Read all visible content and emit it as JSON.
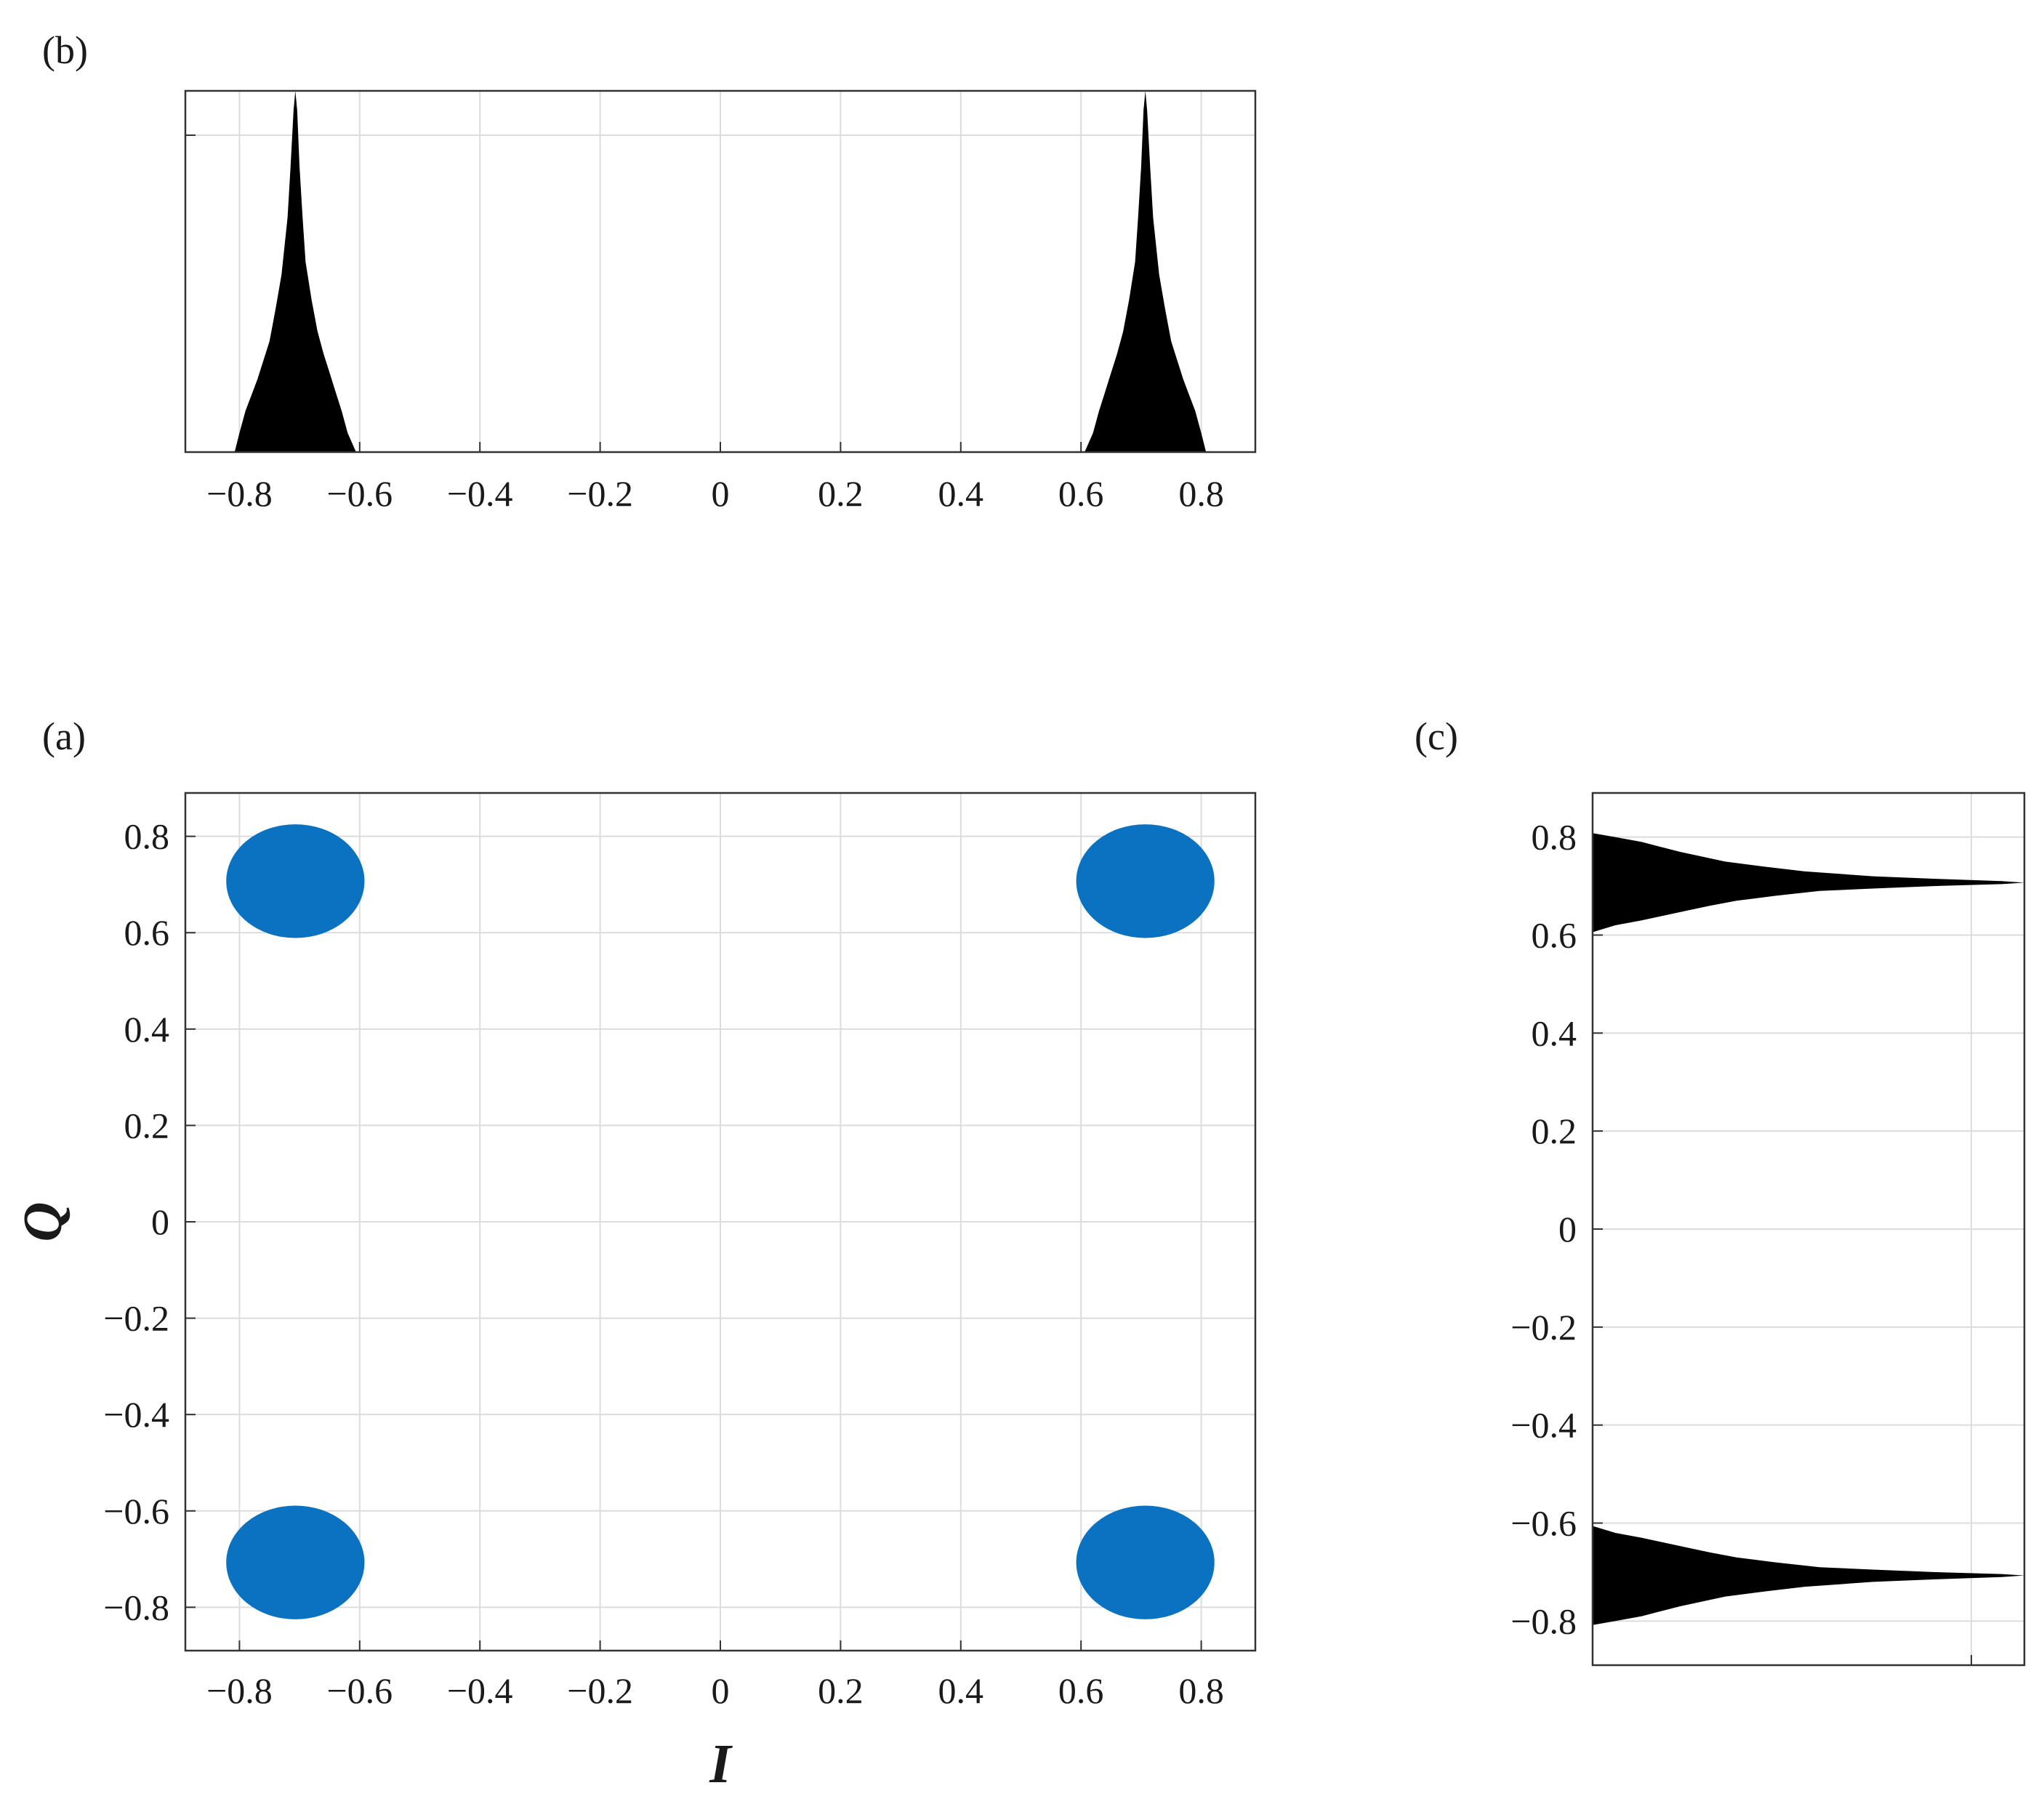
{
  "figure": {
    "panel_labels": {
      "a": "(a)",
      "b": "(b)",
      "c": "(c)"
    }
  },
  "colors": {
    "scatter": "#0a72c0",
    "histogram": "#000000",
    "grid": "#dcdcdc",
    "axis": "#333333"
  },
  "chart_data": [
    {
      "panel": "(a)",
      "type": "scatter",
      "xlabel": "I",
      "ylabel": "Q",
      "xlim": [
        -0.89,
        0.89
      ],
      "ylim": [
        -0.89,
        0.89
      ],
      "xticks": [
        -0.8,
        -0.6,
        -0.4,
        -0.2,
        0,
        0.2,
        0.4,
        0.6,
        0.8
      ],
      "yticks": [
        -0.8,
        -0.6,
        -0.4,
        -0.2,
        0,
        0.2,
        0.4,
        0.6,
        0.8
      ],
      "xtick_labels": [
        "−0.8",
        "−0.6",
        "−0.4",
        "−0.2",
        "0",
        "0.2",
        "0.4",
        "0.6",
        "0.8"
      ],
      "ytick_labels": [
        "−0.8",
        "−0.6",
        "−0.4",
        "−0.2",
        "0",
        "0.2",
        "0.4",
        "0.6",
        "0.8"
      ],
      "grid": true,
      "clusters": [
        {
          "center": [
            -0.707,
            0.707
          ],
          "spread": [
            0.115,
            0.118
          ]
        },
        {
          "center": [
            0.707,
            0.707
          ],
          "spread": [
            0.115,
            0.118
          ]
        },
        {
          "center": [
            -0.707,
            -0.707
          ],
          "spread": [
            0.115,
            0.118
          ]
        },
        {
          "center": [
            0.707,
            -0.707
          ],
          "spread": [
            0.115,
            0.118
          ]
        }
      ]
    },
    {
      "panel": "(b)",
      "type": "area",
      "description_axis": "I",
      "xlim": [
        -0.89,
        0.89
      ],
      "ylim": [
        0,
        1.14
      ],
      "xticks": [
        -0.8,
        -0.6,
        -0.4,
        -0.2,
        0,
        0.2,
        0.4,
        0.6,
        0.8
      ],
      "xtick_labels": [
        "−0.8",
        "−0.6",
        "−0.4",
        "−0.2",
        "0",
        "0.2",
        "0.4",
        "0.6",
        "0.8"
      ],
      "ytick_marks": [
        1.0
      ],
      "grid": true,
      "peaks": [
        {
          "center": -0.707,
          "profile": [
            [
              -0.808,
              0.0
            ],
            [
              -0.8,
              0.06
            ],
            [
              -0.79,
              0.13
            ],
            [
              -0.78,
              0.18
            ],
            [
              -0.77,
              0.23
            ],
            [
              -0.76,
              0.29
            ],
            [
              -0.75,
              0.35
            ],
            [
              -0.74,
              0.45
            ],
            [
              -0.73,
              0.56
            ],
            [
              -0.72,
              0.74
            ],
            [
              -0.715,
              0.9
            ],
            [
              -0.71,
              1.08
            ],
            [
              -0.707,
              1.14
            ],
            [
              -0.704,
              1.08
            ],
            [
              -0.7,
              0.9
            ],
            [
              -0.695,
              0.74
            ],
            [
              -0.69,
              0.6
            ],
            [
              -0.68,
              0.48
            ],
            [
              -0.67,
              0.38
            ],
            [
              -0.66,
              0.31
            ],
            [
              -0.65,
              0.25
            ],
            [
              -0.64,
              0.19
            ],
            [
              -0.63,
              0.13
            ],
            [
              -0.62,
              0.06
            ],
            [
              -0.606,
              0.0
            ]
          ]
        },
        {
          "center": 0.707,
          "profile": [
            [
              0.606,
              0.0
            ],
            [
              0.62,
              0.06
            ],
            [
              0.63,
              0.13
            ],
            [
              0.64,
              0.19
            ],
            [
              0.65,
              0.25
            ],
            [
              0.66,
              0.31
            ],
            [
              0.67,
              0.38
            ],
            [
              0.68,
              0.48
            ],
            [
              0.69,
              0.6
            ],
            [
              0.695,
              0.74
            ],
            [
              0.7,
              0.9
            ],
            [
              0.704,
              1.08
            ],
            [
              0.707,
              1.14
            ],
            [
              0.71,
              1.08
            ],
            [
              0.715,
              0.9
            ],
            [
              0.72,
              0.74
            ],
            [
              0.73,
              0.56
            ],
            [
              0.74,
              0.45
            ],
            [
              0.75,
              0.35
            ],
            [
              0.76,
              0.29
            ],
            [
              0.77,
              0.23
            ],
            [
              0.78,
              0.18
            ],
            [
              0.79,
              0.13
            ],
            [
              0.8,
              0.06
            ],
            [
              0.808,
              0.0
            ]
          ]
        }
      ]
    },
    {
      "panel": "(c)",
      "type": "area",
      "description_axis": "Q",
      "orientation": "horizontal",
      "ylim": [
        -0.89,
        0.89
      ],
      "xlim": [
        0,
        1.14
      ],
      "yticks": [
        -0.8,
        -0.6,
        -0.4,
        -0.2,
        0,
        0.2,
        0.4,
        0.6,
        0.8
      ],
      "ytick_labels": [
        "−0.8",
        "−0.6",
        "−0.4",
        "−0.2",
        "0",
        "0.2",
        "0.4",
        "0.6",
        "0.8"
      ],
      "xtick_marks": [
        1.0
      ],
      "grid": true,
      "peaks": [
        {
          "center": 0.707,
          "profile": [
            [
              0.606,
              0.0
            ],
            [
              0.62,
              0.06
            ],
            [
              0.63,
              0.13
            ],
            [
              0.64,
              0.19
            ],
            [
              0.65,
              0.25
            ],
            [
              0.66,
              0.31
            ],
            [
              0.67,
              0.38
            ],
            [
              0.68,
              0.48
            ],
            [
              0.69,
              0.6
            ],
            [
              0.695,
              0.74
            ],
            [
              0.7,
              0.9
            ],
            [
              0.704,
              1.08
            ],
            [
              0.707,
              1.14
            ],
            [
              0.71,
              1.08
            ],
            [
              0.715,
              0.9
            ],
            [
              0.72,
              0.74
            ],
            [
              0.73,
              0.56
            ],
            [
              0.74,
              0.45
            ],
            [
              0.75,
              0.35
            ],
            [
              0.76,
              0.29
            ],
            [
              0.77,
              0.23
            ],
            [
              0.78,
              0.18
            ],
            [
              0.79,
              0.13
            ],
            [
              0.8,
              0.06
            ],
            [
              0.808,
              0.0
            ]
          ]
        },
        {
          "center": -0.707,
          "profile": [
            [
              -0.808,
              0.0
            ],
            [
              -0.8,
              0.06
            ],
            [
              -0.79,
              0.13
            ],
            [
              -0.78,
              0.18
            ],
            [
              -0.77,
              0.23
            ],
            [
              -0.76,
              0.29
            ],
            [
              -0.75,
              0.35
            ],
            [
              -0.74,
              0.45
            ],
            [
              -0.73,
              0.56
            ],
            [
              -0.72,
              0.74
            ],
            [
              -0.715,
              0.9
            ],
            [
              -0.71,
              1.08
            ],
            [
              -0.707,
              1.14
            ],
            [
              -0.704,
              1.08
            ],
            [
              -0.7,
              0.9
            ],
            [
              -0.695,
              0.74
            ],
            [
              -0.69,
              0.6
            ],
            [
              -0.68,
              0.48
            ],
            [
              -0.67,
              0.38
            ],
            [
              -0.66,
              0.31
            ],
            [
              -0.65,
              0.25
            ],
            [
              -0.64,
              0.19
            ],
            [
              -0.63,
              0.13
            ],
            [
              -0.62,
              0.06
            ],
            [
              -0.606,
              0.0
            ]
          ]
        }
      ]
    }
  ]
}
